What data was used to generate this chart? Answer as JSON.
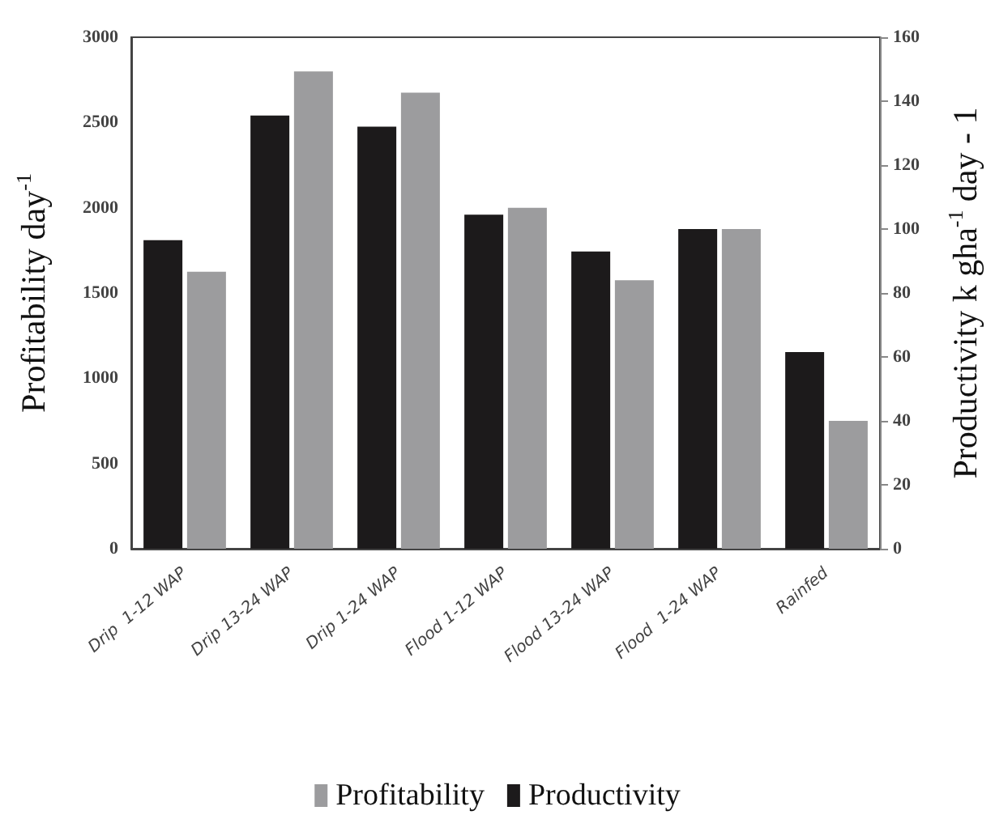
{
  "chart_data": {
    "type": "bar",
    "categories": [
      "Drip  1-12 WAP",
      "Drip 13-24 WAP",
      "Drip 1-24 WAP",
      "Flood 1-12 WAP",
      "Flood 13-24 WAP",
      "Flood  1-24 WAP",
      "Rainfed"
    ],
    "series": [
      {
        "name": "Productivity",
        "color": "#1c1a1b",
        "axis": "y2",
        "values": [
          96.5,
          135.5,
          132,
          104.5,
          93,
          100,
          61.5
        ]
      },
      {
        "name": "Profitability",
        "color": "#9c9c9e",
        "values": [
          1625,
          2800,
          2675,
          2000,
          1575,
          1875,
          750
        ]
      }
    ],
    "ylabel": "Profitability day$^{-1}$",
    "y2label": "Productivity k gha$^{-1}$ day - 1",
    "ylim": [
      0,
      3000
    ],
    "yticks": [
      0,
      500,
      1000,
      1500,
      2000,
      2500,
      3000
    ],
    "y2lim": [
      0,
      160
    ],
    "y2ticks": [
      0,
      20,
      40,
      60,
      80,
      100,
      120,
      140,
      160
    ],
    "grid": false,
    "legend": "bottom"
  }
}
